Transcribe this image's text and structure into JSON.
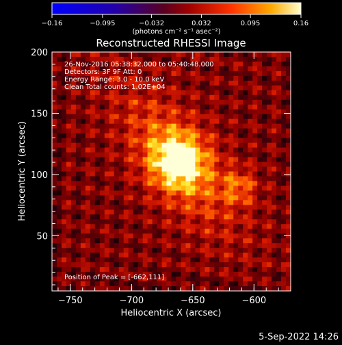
{
  "chart_data": {
    "type": "heatmap",
    "title": "Reconstructed RHESSI Image",
    "xlabel": "Heliocentric X (arcsec)",
    "ylabel": "Heliocentric Y (arcsec)",
    "xlim": [
      -765,
      -570
    ],
    "ylim": [
      5,
      200
    ],
    "x_ticks": [
      -750,
      -700,
      -650,
      -600
    ],
    "y_ticks": [
      50,
      100,
      150,
      200
    ],
    "x_tick_labels": [
      "−750",
      "−700",
      "−650",
      "−600"
    ],
    "y_tick_labels": [
      "50",
      "100",
      "150",
      "200"
    ],
    "colorbar": {
      "range": [
        -0.16,
        0.16
      ],
      "ticks": [
        -0.16,
        -0.095,
        -0.032,
        0.032,
        0.095,
        0.16
      ],
      "tick_labels": [
        "−0.16",
        "−0.095",
        "−0.032",
        "0.032",
        "0.095",
        "0.16"
      ],
      "unit_label": "(photons cm⁻² s⁻¹ asec⁻²)"
    },
    "peak": {
      "x": -662,
      "y": 111
    },
    "secondary_source": {
      "x": -612,
      "y": 90
    },
    "info_lines": [
      "26-Nov-2016 05:38:32.000 to 05:40:48.000",
      "Detectors: 3F 9F  Att: 0",
      "Energy Range: 3.0 - 10.0 keV",
      "Clean       Total counts: 1.02E+04"
    ],
    "peak_label": "Position of Peak = [-662,111]"
  },
  "footer": {
    "timestamp": "5-Sep-2022 14:26"
  }
}
